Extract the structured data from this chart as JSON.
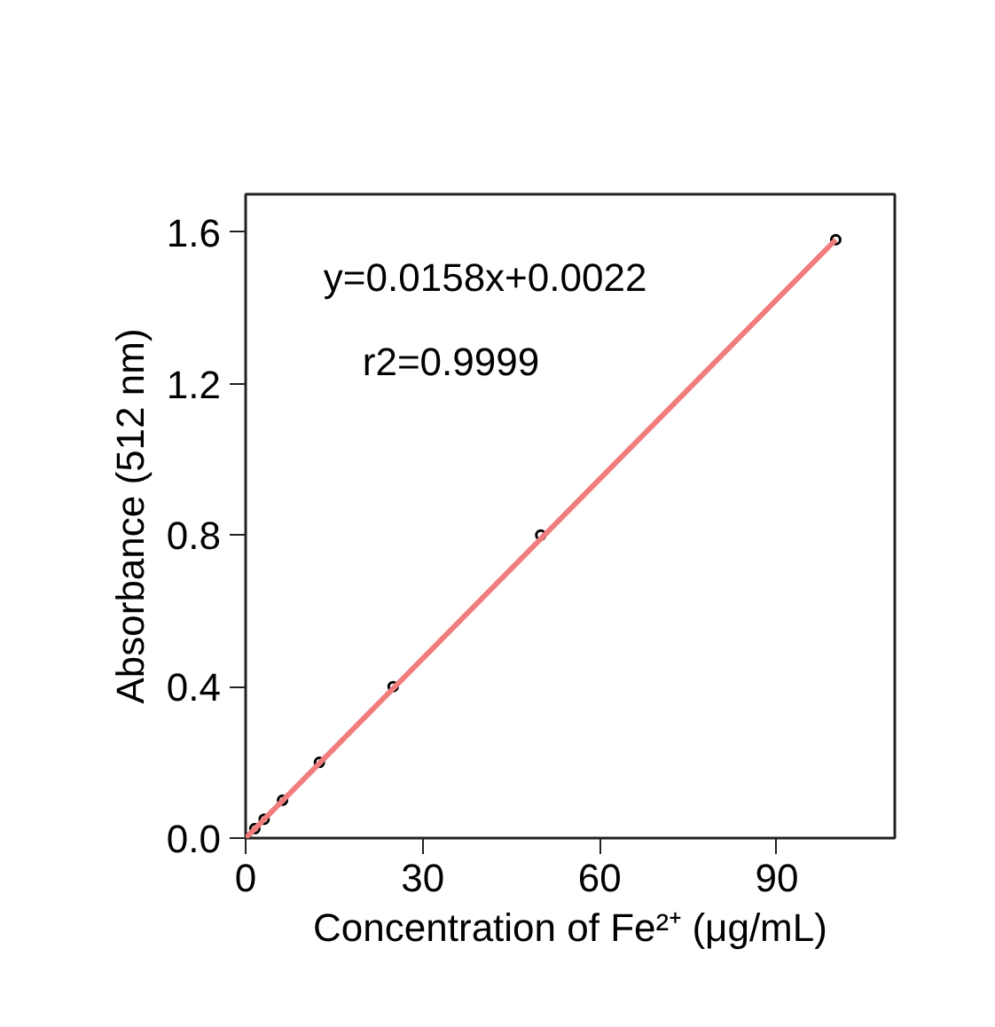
{
  "chart_data": {
    "type": "scatter",
    "xlabel": "Concentration of Fe²⁺ (μg/mL)",
    "ylabel": "Absorbance (512 nm)",
    "xlim": [
      0,
      110
    ],
    "ylim": [
      0,
      1.7
    ],
    "xticks": [
      0,
      30,
      60,
      90
    ],
    "yticks": [
      {
        "value": 0,
        "label": "0.0"
      },
      {
        "value": 0.4,
        "label": "0.4"
      },
      {
        "value": 0.8,
        "label": "0.8"
      },
      {
        "value": 1.2,
        "label": "1.2"
      },
      {
        "value": 1.6,
        "label": "1.6"
      }
    ],
    "grid": false,
    "marker": "circle",
    "annotations": [
      "y=0.0158x+0.0022",
      "r2=0.9999"
    ],
    "series": [
      {
        "color": "#000000",
        "x": [
          0,
          1.56,
          3.13,
          6.25,
          12.5,
          25,
          50,
          100
        ],
        "values": [
          0.0,
          0.025,
          0.05,
          0.1,
          0.2,
          0.4,
          0.8,
          1.58
        ]
      },
      {
        "type": "line",
        "marker": "none",
        "color": "#f07c7c",
        "x": [
          0,
          100
        ],
        "values": [
          0.0,
          1.58
        ]
      }
    ]
  }
}
